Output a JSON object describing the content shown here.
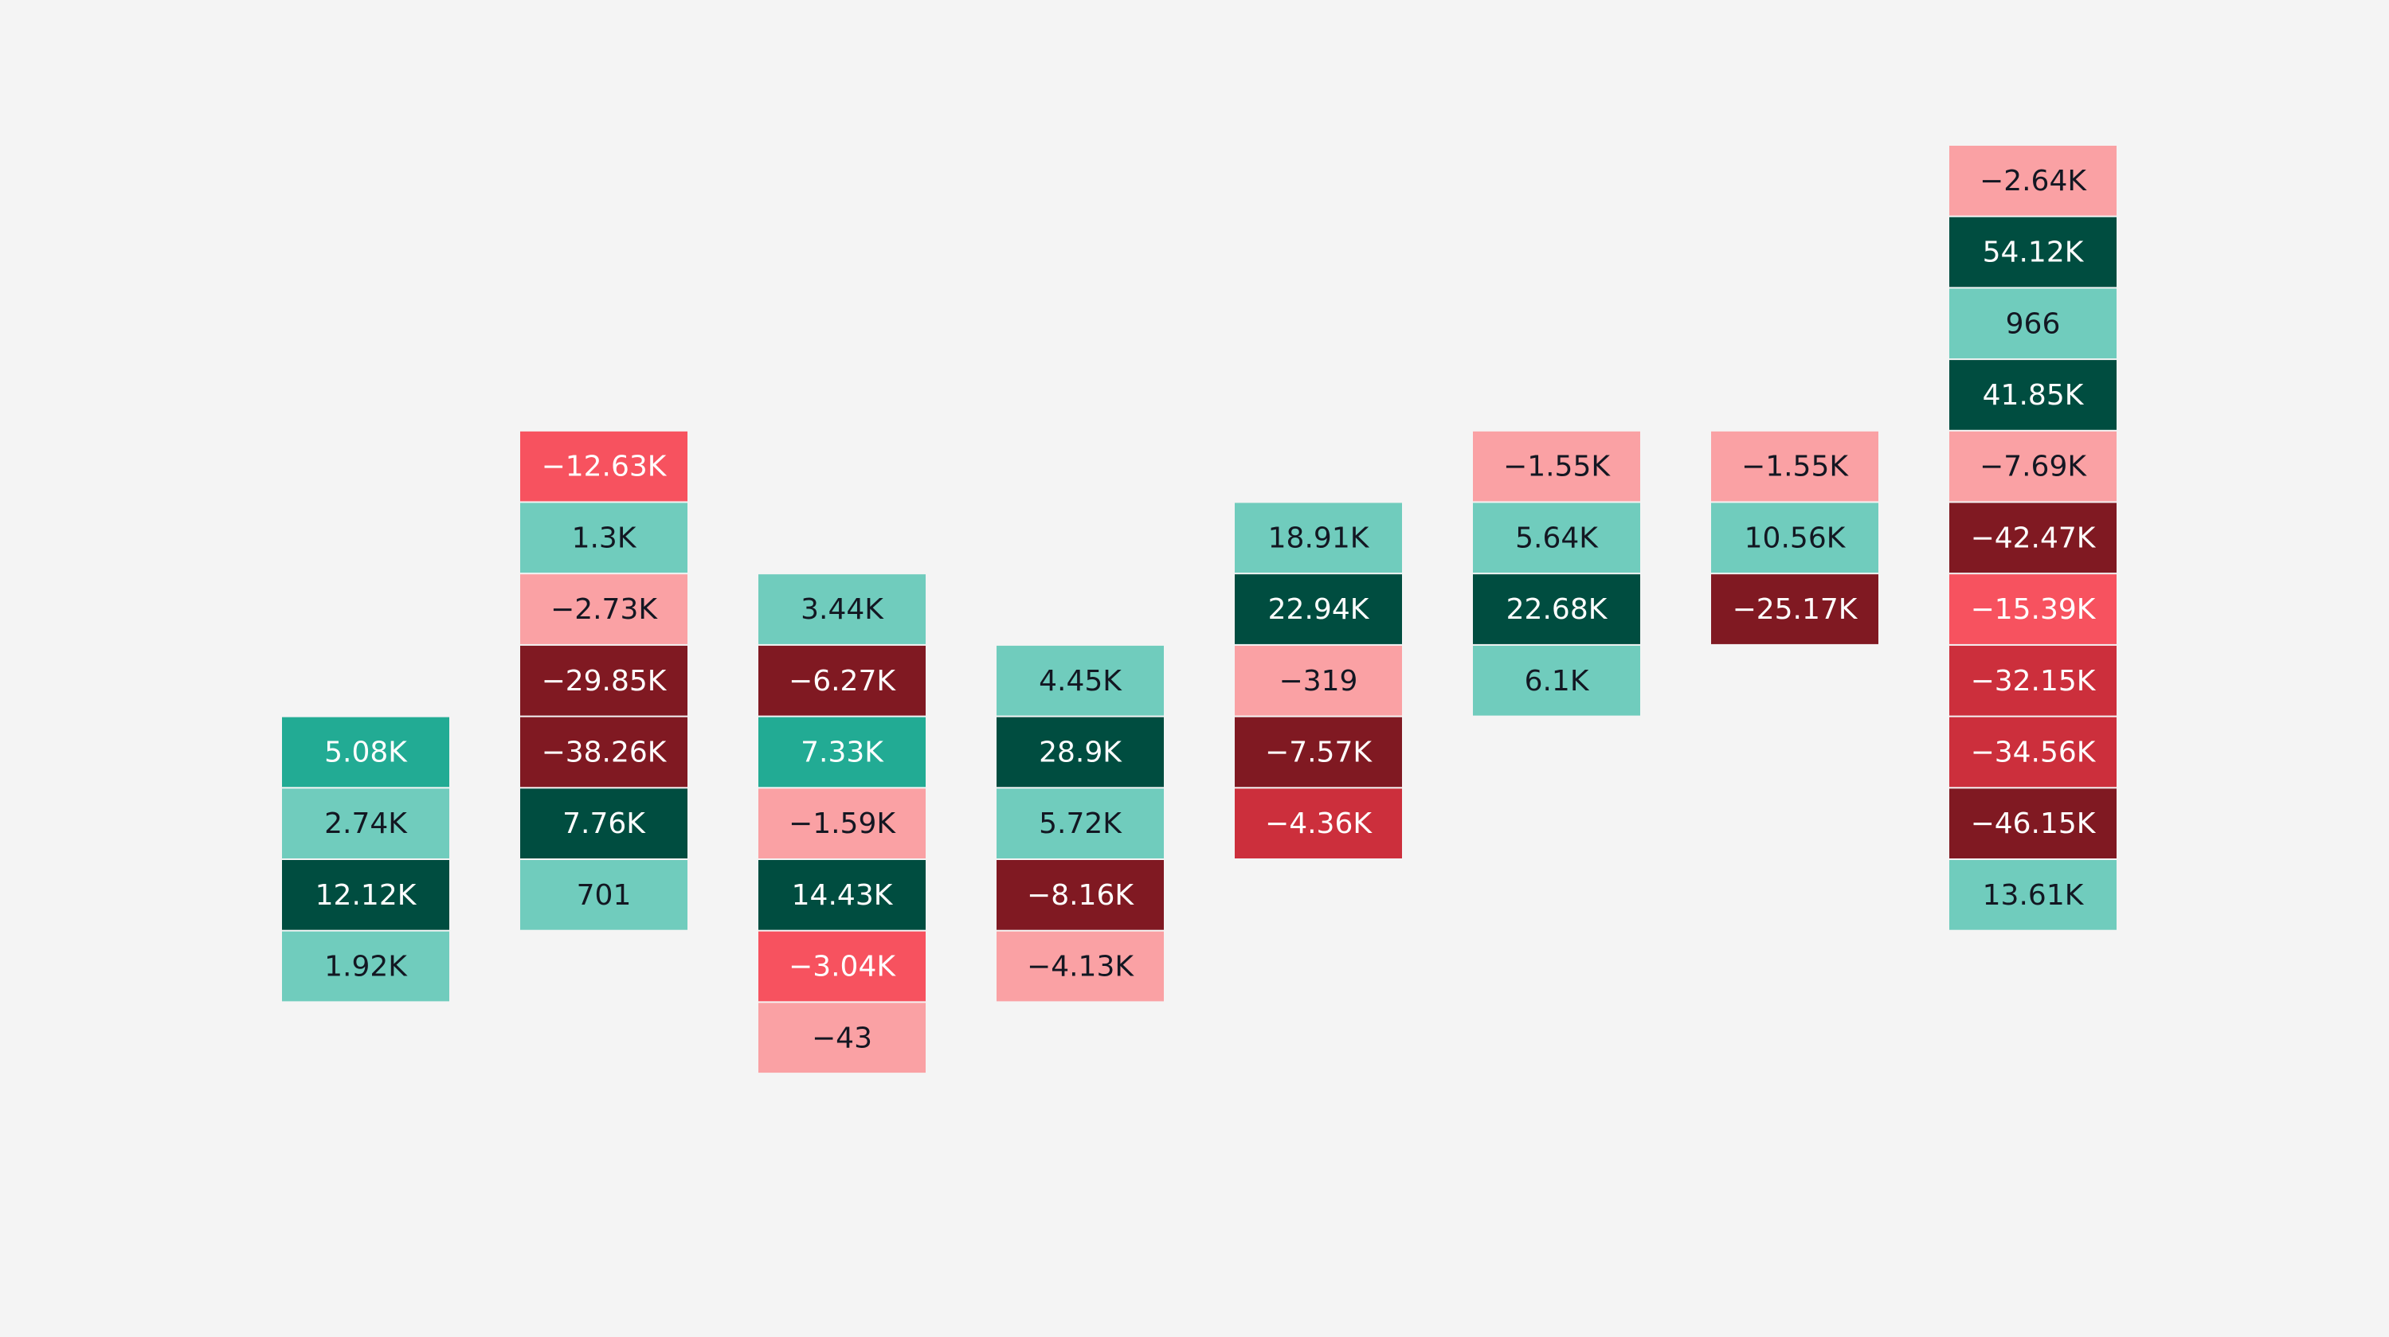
{
  "chart_data": {
    "type": "tile-columns",
    "series": [
      {
        "values": [
          5080,
          2740,
          12120,
          1920
        ],
        "value_labels": [
          "5.08K",
          "2.74K",
          "12.12K",
          "1.92K"
        ],
        "colors": [
          "#22ab94",
          "#70ccbd",
          "#004d40",
          "#70ccbd"
        ]
      },
      {
        "values": [
          -12630,
          1300,
          -2730,
          -29850,
          -38260,
          7760,
          701
        ],
        "value_labels": [
          "−12.63K",
          "1.3K",
          "−2.73K",
          "−29.85K",
          "−38.26K",
          "7.76K",
          "701"
        ],
        "colors": [
          "#f7525f",
          "#70ccbd",
          "#faa1a4",
          "#801922",
          "#801922",
          "#004d40",
          "#70ccbd"
        ]
      },
      {
        "values": [
          3440,
          -6270,
          7330,
          -1590,
          14430,
          -3040,
          -43
        ],
        "value_labels": [
          "3.44K",
          "−6.27K",
          "7.33K",
          "−1.59K",
          "14.43K",
          "−3.04K",
          "−43"
        ],
        "colors": [
          "#70ccbd",
          "#801922",
          "#22ab94",
          "#faa1a4",
          "#004d40",
          "#f7525f",
          "#faa1a4"
        ]
      },
      {
        "values": [
          4450,
          28900,
          5720,
          -8160,
          -4130
        ],
        "value_labels": [
          "4.45K",
          "28.9K",
          "5.72K",
          "−8.16K",
          "−4.13K"
        ],
        "colors": [
          "#70ccbd",
          "#004d40",
          "#70ccbd",
          "#801922",
          "#faa1a4"
        ]
      },
      {
        "values": [
          18910,
          22940,
          -319,
          -7570,
          -4360
        ],
        "value_labels": [
          "18.91K",
          "22.94K",
          "−319",
          "−7.57K",
          "−4.36K"
        ],
        "colors": [
          "#70ccbd",
          "#004d40",
          "#faa1a4",
          "#801922",
          "#cc2f3c"
        ]
      },
      {
        "values": [
          -1550,
          5640,
          22680,
          6100
        ],
        "value_labels": [
          "−1.55K",
          "5.64K",
          "22.68K",
          "6.1K"
        ],
        "colors": [
          "#faa1a4",
          "#70ccbd",
          "#004d40",
          "#70ccbd"
        ]
      },
      {
        "values": [
          -1550,
          10560,
          -25170
        ],
        "value_labels": [
          "−1.55K",
          "10.56K",
          "−25.17K"
        ],
        "colors": [
          "#faa1a4",
          "#70ccbd",
          "#801922"
        ]
      },
      {
        "values": [
          -2640,
          54120,
          966,
          41850,
          -7690,
          -42470,
          -15390,
          -32150,
          -34560,
          -46150,
          13610
        ],
        "value_labels": [
          "−2.64K",
          "54.12K",
          "966",
          "41.85K",
          "−7.69K",
          "−42.47K",
          "−15.39K",
          "−32.15K",
          "−34.56K",
          "−46.15K",
          "13.61K"
        ],
        "colors": [
          "#faa1a4",
          "#004d40",
          "#70ccbd",
          "#004d40",
          "#faa1a4",
          "#801922",
          "#f7525f",
          "#cc2f3c",
          "#cc2f3c",
          "#801922",
          "#70ccbd"
        ]
      }
    ]
  }
}
